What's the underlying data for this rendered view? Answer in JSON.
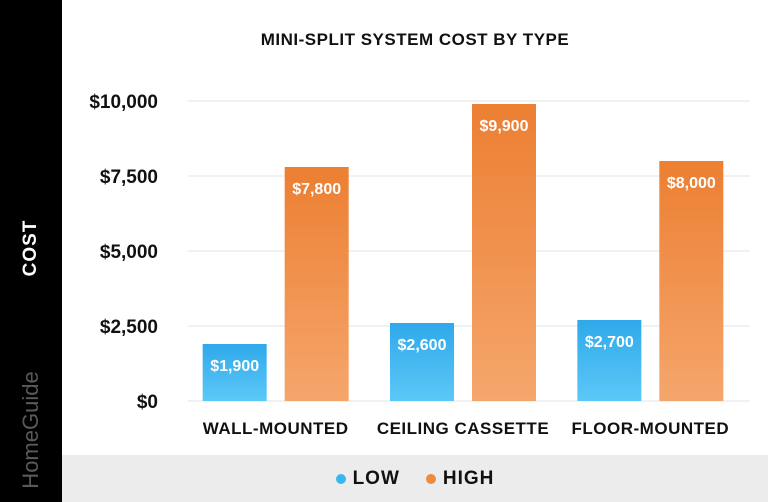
{
  "brand": "HomeGuide",
  "chart_data": {
    "type": "bar",
    "title": "MINI-SPLIT SYSTEM COST BY TYPE",
    "xlabel": "",
    "ylabel": "COST",
    "categories": [
      "WALL-MOUNTED",
      "CEILING CASSETTE",
      "FLOOR-MOUNTED"
    ],
    "series": [
      {
        "name": "LOW",
        "values": [
          1900,
          2600,
          2700
        ],
        "labels": [
          "$1,900",
          "$2,600",
          "$2,700"
        ],
        "color": "#3ab6ee"
      },
      {
        "name": "HIGH",
        "values": [
          7800,
          9900,
          8000
        ],
        "labels": [
          "$7,800",
          "$9,900",
          "$8,000"
        ],
        "color": "#ef8a3a"
      }
    ],
    "ylim": [
      0,
      10000
    ],
    "yticks": [
      0,
      2500,
      5000,
      7500,
      10000
    ],
    "ytick_labels": [
      "$0",
      "$2,500",
      "$5,000",
      "$7,500",
      "$10,000"
    ],
    "grid": true,
    "legend_position": "bottom"
  }
}
